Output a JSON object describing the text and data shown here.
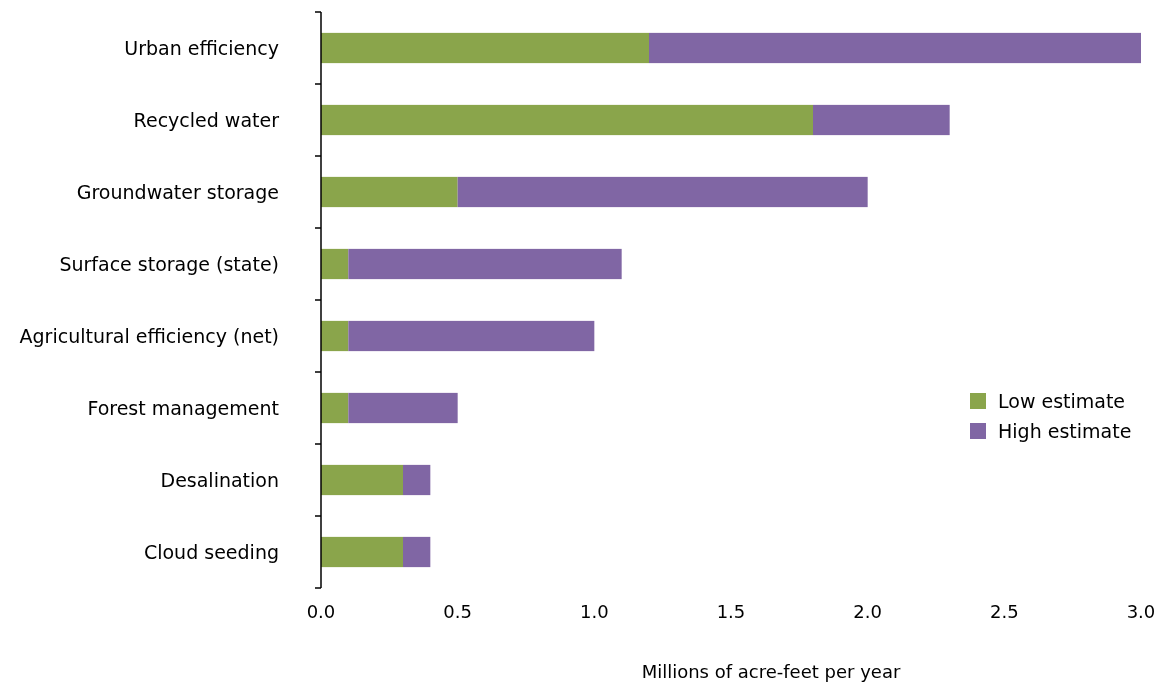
{
  "chart_data": {
    "type": "bar",
    "orientation": "horizontal",
    "stacked": true,
    "categories": [
      "Urban efficiency",
      "Recycled water",
      "Groundwater storage",
      "Surface storage (state)",
      "Agricultural efficiency (net)",
      "Forest management",
      "Desalination",
      "Cloud seeding"
    ],
    "series": [
      {
        "name": "Low estimate",
        "color": "#8aa54b",
        "values": [
          1.2,
          1.8,
          0.5,
          0.1,
          0.1,
          0.1,
          0.3,
          0.3
        ]
      },
      {
        "name": "High estimate",
        "color": "#8066a4",
        "values": [
          1.8,
          0.5,
          1.5,
          1.0,
          0.9,
          0.4,
          0.1,
          0.1
        ]
      }
    ],
    "xlim": [
      0,
      3
    ],
    "xticks": [
      {
        "value": 0,
        "label": "0.0"
      },
      {
        "value": 0.5,
        "label": "0.5"
      },
      {
        "value": 1,
        "label": "1.0"
      },
      {
        "value": 1.5,
        "label": "1.5"
      },
      {
        "value": 2,
        "label": "2.0"
      },
      {
        "value": 2.5,
        "label": "2.5"
      },
      {
        "value": 3,
        "label": "3.0"
      }
    ],
    "xlabel": "Millions of acre-feet per year",
    "legend": "right",
    "grid": false
  }
}
